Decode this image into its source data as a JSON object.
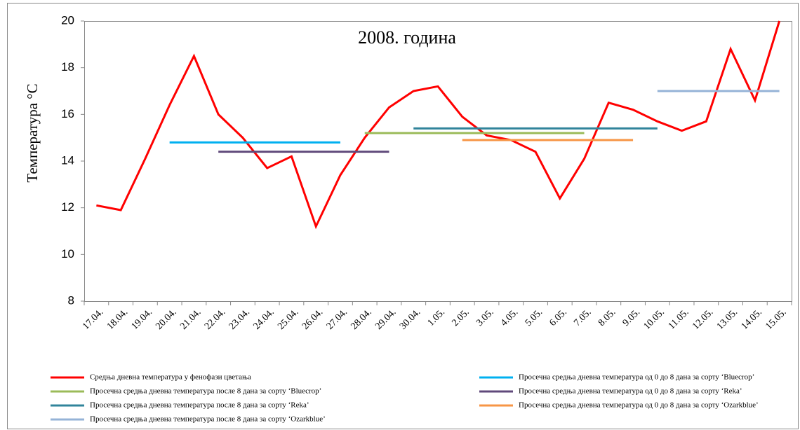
{
  "chart_data": {
    "type": "line",
    "title": "2008. година",
    "y_label": "Температура °C",
    "categories": [
      "17.04.",
      "18.04.",
      "19.04.",
      "20.04.",
      "21.04.",
      "22.04.",
      "23.04.",
      "24.04.",
      "25.04.",
      "26.04.",
      "27.04.",
      "28.04.",
      "29.04.",
      "30.04.",
      "1.05.",
      "2.05.",
      "3.05.",
      "4.05.",
      "5.05.",
      "6.05.",
      "7.05.",
      "8.05.",
      "9.05.",
      "10.05.",
      "11.05.",
      "12.05.",
      "13.05.",
      "14.05.",
      "15.05."
    ],
    "ylim": [
      8,
      20
    ],
    "yticks": [
      8,
      10,
      12,
      14,
      16,
      18,
      20
    ],
    "grid": false,
    "series": [
      {
        "name": "Средња дневна температура у фенофази цветања",
        "color": "#ff0000",
        "values": [
          12.1,
          11.9,
          14.1,
          16.4,
          18.5,
          16.0,
          15.0,
          13.7,
          14.2,
          11.2,
          13.4,
          15.0,
          16.3,
          17.0,
          17.2,
          15.9,
          15.1,
          14.9,
          14.4,
          12.4,
          14.1,
          16.5,
          16.2,
          15.7,
          15.3,
          15.7,
          18.8,
          16.6,
          20.0
        ]
      },
      {
        "name": "Просечна средња дневна температура од 0 до 8 дана за сорту ‘Bluecrop’",
        "color": "#00b0f0",
        "values": [
          null,
          null,
          null,
          14.8,
          14.8,
          14.8,
          14.8,
          14.8,
          14.8,
          14.8,
          14.8,
          null,
          null,
          null,
          null,
          null,
          null,
          null,
          null,
          null,
          null,
          null,
          null,
          null,
          null,
          null,
          null,
          null,
          null
        ]
      },
      {
        "name": "Просечна средња дневна температура после 8 дана за сорту ‘Bluecrop’",
        "color": "#9bbb59",
        "values": [
          null,
          null,
          null,
          null,
          null,
          null,
          null,
          null,
          null,
          null,
          null,
          15.2,
          15.2,
          15.2,
          15.2,
          15.2,
          15.2,
          15.2,
          15.2,
          15.2,
          15.2,
          null,
          null,
          null,
          null,
          null,
          null,
          null,
          null
        ]
      },
      {
        "name": "Просечна средња дневна температура од 0 до 8 дана за сорту ‘Reka’",
        "color": "#604a7b",
        "values": [
          null,
          null,
          null,
          null,
          null,
          14.4,
          14.4,
          14.4,
          14.4,
          14.4,
          14.4,
          14.4,
          14.4,
          null,
          null,
          null,
          null,
          null,
          null,
          null,
          null,
          null,
          null,
          null,
          null,
          null,
          null,
          null,
          null
        ]
      },
      {
        "name": "Просечна средња дневна температура после 8 дана за сорту ‘Reka’",
        "color": "#31849b",
        "values": [
          null,
          null,
          null,
          null,
          null,
          null,
          null,
          null,
          null,
          null,
          null,
          null,
          null,
          15.4,
          15.4,
          15.4,
          15.4,
          15.4,
          15.4,
          15.4,
          15.4,
          15.4,
          15.4,
          15.4,
          null,
          null,
          null,
          null,
          null
        ]
      },
      {
        "name": "Просечна средња дневна температура од 0 до 8 дана за сорту ‘Ozarkblue’",
        "color": "#f79646",
        "values": [
          null,
          null,
          null,
          null,
          null,
          null,
          null,
          null,
          null,
          null,
          null,
          null,
          null,
          null,
          null,
          14.9,
          14.9,
          14.9,
          14.9,
          14.9,
          14.9,
          14.9,
          14.9,
          null,
          null,
          null,
          null,
          null,
          null
        ]
      },
      {
        "name": "Просечна средња дневна температура после 8 дана за сорту ‘Ozarkblue’",
        "color": "#95b3d7",
        "values": [
          null,
          null,
          null,
          null,
          null,
          null,
          null,
          null,
          null,
          null,
          null,
          null,
          null,
          null,
          null,
          null,
          null,
          null,
          null,
          null,
          null,
          null,
          null,
          17.0,
          17.0,
          17.0,
          17.0,
          17.0,
          17.0
        ]
      }
    ]
  }
}
